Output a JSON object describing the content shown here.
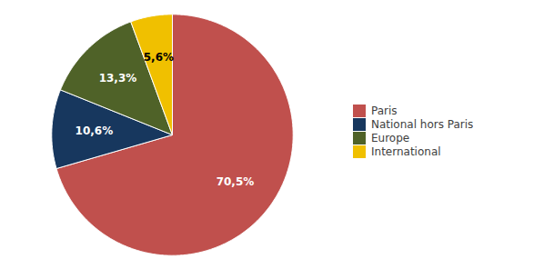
{
  "chart_data": {
    "type": "pie",
    "categories": [
      "Paris",
      "National hors Paris",
      "Europe",
      "International"
    ],
    "values": [
      70.5,
      10.6,
      13.3,
      5.6
    ],
    "value_labels": [
      "70,5%",
      "10,6%",
      "13,3%",
      "5,6%"
    ],
    "colors": [
      "#c0504d",
      "#17375e",
      "#4f6228",
      "#f0c000"
    ],
    "data_labels": true,
    "legend": "right"
  }
}
